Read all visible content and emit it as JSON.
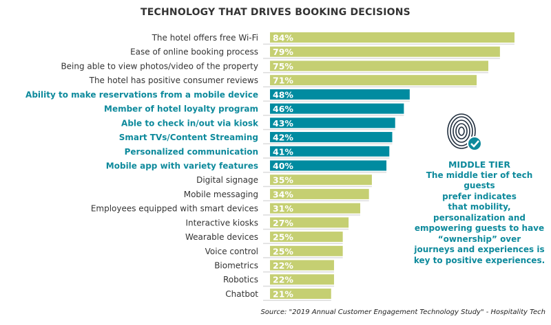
{
  "chart_data": {
    "type": "bar",
    "orientation": "horizontal",
    "title": "TECHNOLOGY THAT DRIVES BOOKING DECISIONS",
    "categories": [
      "The hotel offers free Wi-Fi",
      "Ease of online booking process",
      "Being able to view photos/video of the property",
      "The hotel has positive consumer reviews",
      "Ability to make reservations from a mobile device",
      "Member of hotel loyalty program",
      "Able to check in/out via kiosk",
      "Smart TVs/Content Streaming",
      "Personalized communication",
      "Mobile app with variety features",
      "Digital signage",
      "Mobile messaging",
      "Employees equipped with smart devices",
      "Interactive kiosks",
      "Wearable devices",
      "Voice control",
      "Biometrics",
      "Robotics",
      "Chatbot"
    ],
    "values": [
      84,
      79,
      75,
      71,
      48,
      46,
      43,
      42,
      41,
      40,
      35,
      34,
      31,
      27,
      25,
      25,
      22,
      22,
      21
    ],
    "data_labels": [
      "84%",
      "79%",
      "75%",
      "71%",
      "48%",
      "46%",
      "43%",
      "42%",
      "41%",
      "40%",
      "35%",
      "34%",
      "31%",
      "27%",
      "25%",
      "25%",
      "22%",
      "22%",
      "21%"
    ],
    "highlighted": [
      false,
      false,
      false,
      false,
      true,
      true,
      true,
      true,
      true,
      true,
      false,
      false,
      false,
      false,
      false,
      false,
      false,
      false,
      false
    ],
    "colors": {
      "default": "#c5cf72",
      "highlight": "#008ba0",
      "label": "#333333",
      "label_highlight": "#0e8a9c"
    },
    "xlim": [
      0,
      84
    ],
    "grid": false,
    "legend": "none"
  },
  "callout": {
    "icon": "fingerprint-check-icon",
    "title": "MIDDLE TIER",
    "lines": [
      "The middle tier of tech guests",
      "prefer indicates",
      "that mobility,",
      "personalization and",
      "empowering guests to have",
      "“ownership” over",
      "journeys and experiences is",
      "key to positive experiences."
    ]
  },
  "source": "Source: \"2019 Annual Customer Engagement Technology Study\" - Hospitality Tech"
}
